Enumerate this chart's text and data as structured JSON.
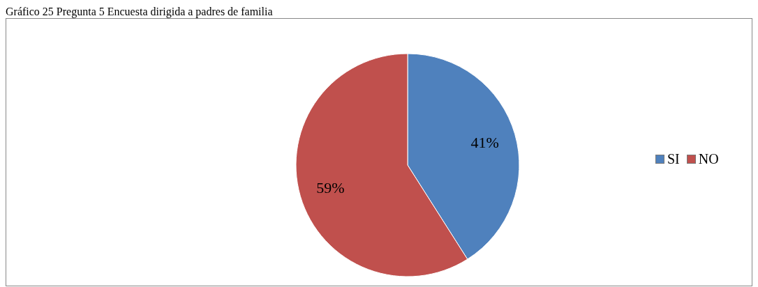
{
  "chart_data": {
    "type": "pie",
    "title": "Gráfico 25 Pregunta 5 Encuesta dirigida a padres de familia",
    "categories": [
      "SI",
      "NO"
    ],
    "values": [
      41,
      59
    ],
    "colors": [
      "#4f81bd",
      "#c0504d"
    ],
    "value_labels": [
      "41%",
      "59%"
    ],
    "legend": "right"
  }
}
